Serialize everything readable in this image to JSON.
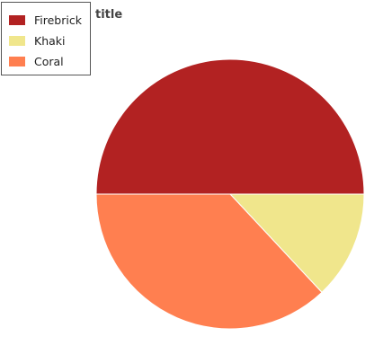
{
  "chart_data": {
    "type": "pie",
    "title": "title",
    "categories": [
      "Firebrick",
      "Khaki",
      "Coral"
    ],
    "values": [
      50,
      13,
      37
    ],
    "colors": [
      "#b22222",
      "#f0e68c",
      "#ff7f50"
    ],
    "legend_position": "top-left"
  }
}
